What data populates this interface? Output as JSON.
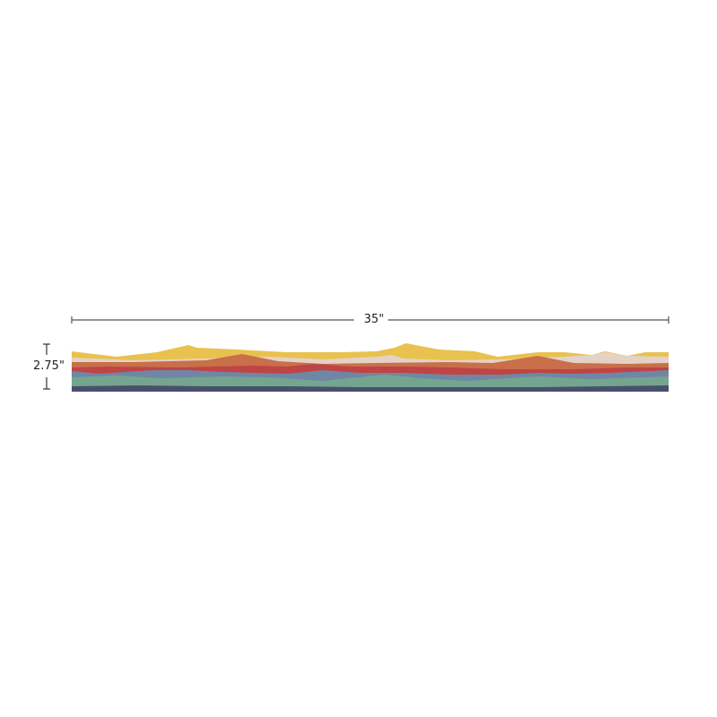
{
  "dimensions": {
    "width_label": "35\"",
    "height_label": "2.75\""
  },
  "colors": {
    "dimension_line": "#555555",
    "layers": {
      "yellow": "#e9c14f",
      "beige": "#e4d2c7",
      "orange": "#c96f4a",
      "red": "#bf4444",
      "blue": "#6f87a5",
      "green": "#74a58f",
      "navy": "#4b4f6e"
    }
  }
}
